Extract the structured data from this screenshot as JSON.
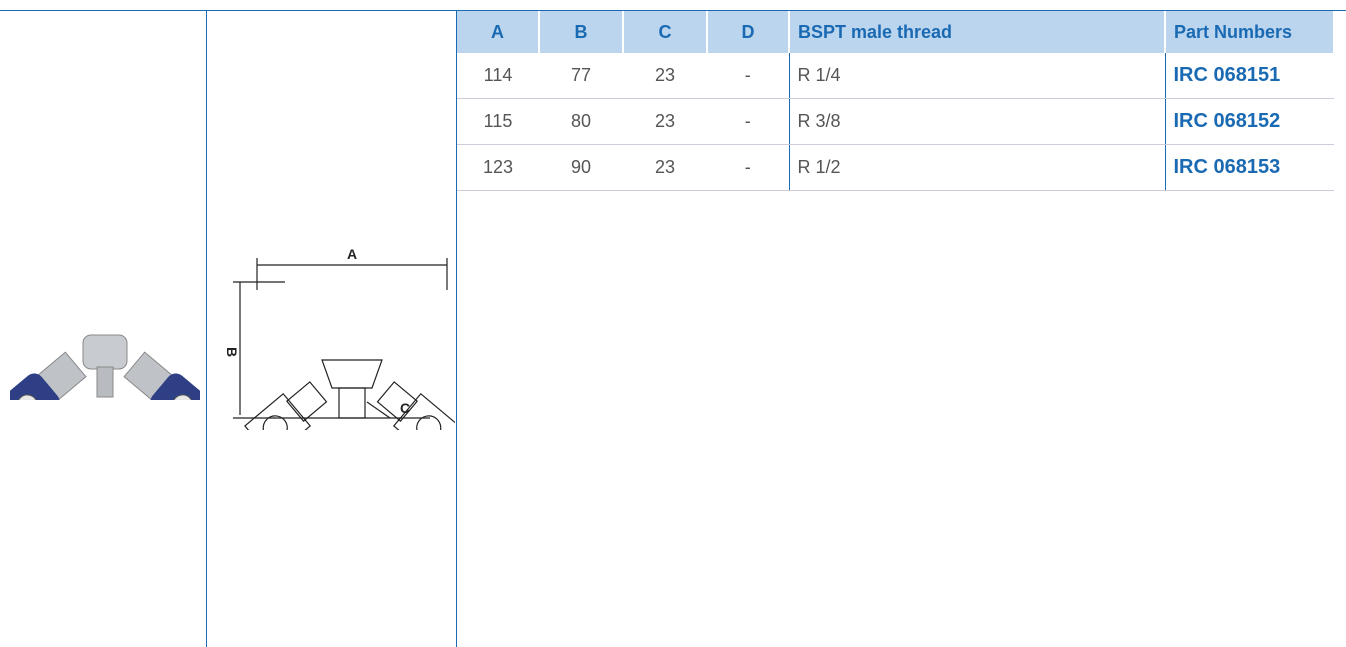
{
  "table": {
    "header": [
      "A",
      "B",
      "C",
      "D",
      "BSPT male thread",
      "Part Numbers"
    ],
    "rows": [
      [
        "114",
        "77",
        "23",
        "-",
        "R 1/4",
        "IRC 068151"
      ],
      [
        "115",
        "80",
        "23",
        "-",
        "R 3/8",
        "IRC 068152"
      ],
      [
        "123",
        "90",
        "23",
        "-",
        "R 1/2",
        "IRC 068153"
      ]
    ]
  },
  "diagram": {
    "labels": [
      "A",
      "B",
      "C"
    ]
  }
}
